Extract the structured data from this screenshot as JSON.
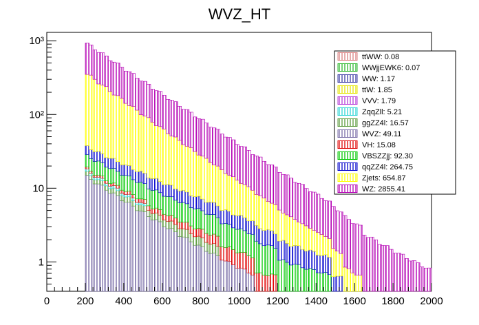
{
  "chart_data": {
    "type": "area",
    "title": "WVZ_HT",
    "xlabel": "",
    "ylabel": "",
    "y_scale": "log",
    "xlim": [
      0,
      2000
    ],
    "ylim": [
      0.4,
      1300
    ],
    "x_ticks": [
      "0",
      "200",
      "400",
      "600",
      "800",
      "1000",
      "1200",
      "1400",
      "1600",
      "1800",
      "2000"
    ],
    "y_ticks": [
      "1",
      "10",
      "10²",
      "10³"
    ],
    "bin_width": 20,
    "bin_start": 200,
    "bin_end": 2000,
    "legend_position": "top-right",
    "legend": [
      "ttWW: 0.08",
      "WWjjEWK6: 0.07",
      "WW: 1.17",
      "ttW: 1.85",
      "VVV: 1.79",
      "ZqqZll: 5.21",
      "ggZZ4l: 16.57",
      "WVZ: 49.11",
      "VH: 15.08",
      "VBSZZjj: 92.30",
      "qqZZ4l: 264.75",
      "Zjets: 654.87",
      "WZ: 2855.41"
    ],
    "stack_order_bottom_to_top": [
      "WVZ",
      "ggZZ4l",
      "ZqqZll",
      "VH",
      "VBSZZjj",
      "qqZZ4l",
      "Zjets",
      "WZ"
    ],
    "series": [
      {
        "name": "WVZ",
        "start": 14,
        "end_x": 1080,
        "end": 0.45
      },
      {
        "name": "ggZZ4l",
        "start": 1.8,
        "end_x": 900,
        "end": 0.4
      },
      {
        "name": "ZqqZll",
        "start": 1.3,
        "end_x": 520,
        "end": 0.4
      },
      {
        "name": "VH",
        "start": 1.0,
        "end_x": 1200,
        "end": 0.45
      },
      {
        "name": "VBSZZjj",
        "start": 9,
        "end_x": 1480,
        "end": 0.45
      },
      {
        "name": "qqZZ4l",
        "start": 9,
        "end_x": 1540,
        "end": 0.4
      },
      {
        "name": "Zjets",
        "start": 320,
        "end_x": 1640,
        "end": 0.4
      },
      {
        "name": "WZ",
        "start": 560,
        "end_x": 2000,
        "end": 0.55
      }
    ],
    "colors": {
      "ttWW": "#d98080",
      "WWjjEWK6": "#2db82d",
      "WW": "#3c3ca5",
      "ttW": "#e6e600",
      "VVV": "#b63cd9",
      "ZqqZll": "#2ed6d6",
      "ggZZ4l": "#5a9a3c",
      "WVZ": "#7a6ea8",
      "VH": "#e00000",
      "VBSZZjj": "#00c800",
      "qqZZ4l": "#0000cc",
      "Zjets": "#ffff00",
      "WZ": "#b400b4"
    }
  }
}
